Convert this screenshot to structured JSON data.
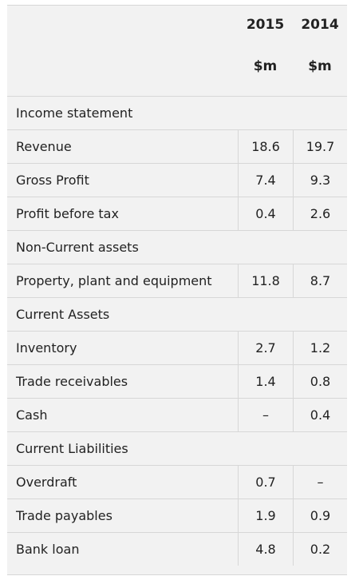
{
  "header": {
    "year_2015": "2015",
    "year_2014": "2014",
    "unit_2015": "$m",
    "unit_2014": "$m"
  },
  "rows": [
    {
      "type": "section",
      "label": "Income statement"
    },
    {
      "type": "data",
      "label": "Revenue",
      "v2015": "18.6",
      "v2014": "19.7"
    },
    {
      "type": "data",
      "label": "Gross Profit",
      "v2015": "7.4",
      "v2014": "9.3"
    },
    {
      "type": "data",
      "label": "Profit before tax",
      "v2015": "0.4",
      "v2014": "2.6"
    },
    {
      "type": "section",
      "label": "Non-Current assets"
    },
    {
      "type": "data",
      "label": "Property, plant and equipment",
      "v2015": "11.8",
      "v2014": "8.7"
    },
    {
      "type": "section",
      "label": "Current Assets"
    },
    {
      "type": "data",
      "label": "Inventory",
      "v2015": "2.7",
      "v2014": "1.2"
    },
    {
      "type": "data",
      "label": "Trade receivables",
      "v2015": "1.4",
      "v2014": "0.8"
    },
    {
      "type": "data",
      "label": "Cash",
      "v2015": "–",
      "v2014": "0.4"
    },
    {
      "type": "section",
      "label": "Current Liabilities"
    },
    {
      "type": "data",
      "label": "Overdraft",
      "v2015": "0.7",
      "v2014": "–"
    },
    {
      "type": "data",
      "label": "Trade payables",
      "v2015": "1.9",
      "v2014": "0.9"
    },
    {
      "type": "data",
      "label": "Bank loan",
      "v2015": "4.8",
      "v2014": "0.2"
    }
  ]
}
